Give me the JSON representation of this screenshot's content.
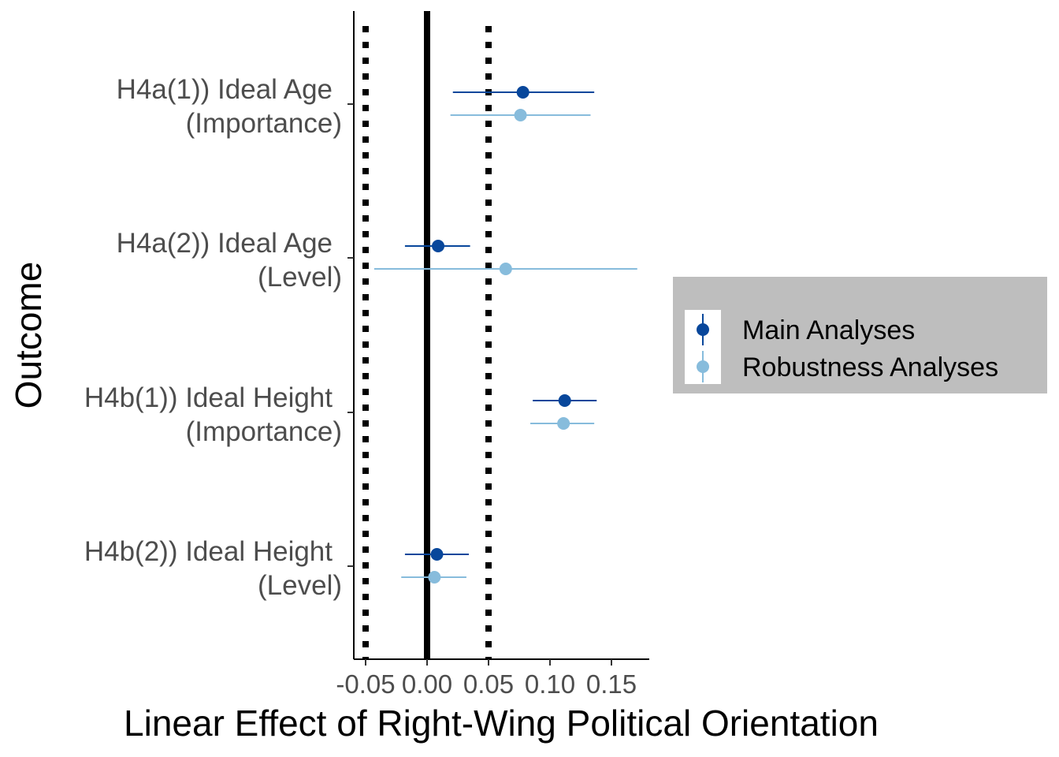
{
  "chart_data": {
    "type": "scatter",
    "subtype": "forest-plot",
    "xlabel": "Linear Effect of Right-Wing Political Orientation",
    "ylabel": "Outcome",
    "xlim": [
      -0.06,
      0.18
    ],
    "xticks": [
      -0.05,
      0.0,
      0.05,
      0.1,
      0.15
    ],
    "xtick_labels": [
      "-0.05",
      "0.00",
      "0.05",
      "0.10",
      "0.15"
    ],
    "reference_lines": [
      {
        "x": -0.05,
        "style": "dotted"
      },
      {
        "x": 0.0,
        "style": "solid"
      },
      {
        "x": 0.05,
        "style": "dotted"
      }
    ],
    "categories": [
      {
        "line1": "H4a(1)) Ideal Age",
        "line2": "(Importance)"
      },
      {
        "line1": "H4a(2)) Ideal Age",
        "line2": "(Level)"
      },
      {
        "line1": "H4b(1)) Ideal Height",
        "line2": "(Importance)"
      },
      {
        "line1": "H4b(2)) Ideal Height",
        "line2": "(Level)"
      }
    ],
    "series": [
      {
        "name": "Main Analyses",
        "color": "#08479b",
        "estimates": [
          0.078,
          0.009,
          0.112,
          0.008
        ],
        "lower": [
          0.021,
          -0.018,
          0.086,
          -0.018
        ],
        "upper": [
          0.136,
          0.035,
          0.138,
          0.034
        ]
      },
      {
        "name": "Robustness Analyses",
        "color": "#87bcdc",
        "estimates": [
          0.076,
          0.064,
          0.111,
          0.006
        ],
        "lower": [
          0.019,
          -0.043,
          0.084,
          -0.021
        ],
        "upper": [
          0.133,
          0.171,
          0.136,
          0.032
        ]
      }
    ],
    "grid": false,
    "legend_position": "right"
  }
}
